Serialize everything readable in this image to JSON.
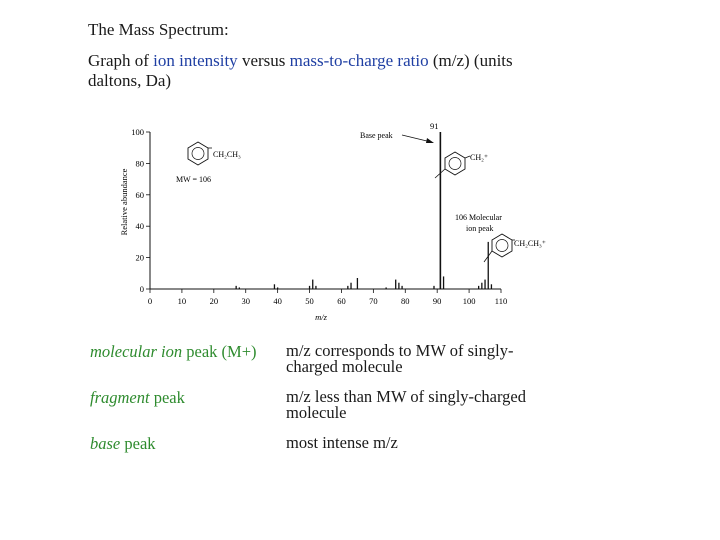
{
  "slide": {
    "title": "The Mass Spectrum:",
    "subtitle": {
      "p1": "Graph of ",
      "k1": "ion intensity",
      "p2": " versus ",
      "k2": "mass-to-charge ratio",
      "p3": " (m/z) (units daltons, Da)"
    }
  },
  "chart_data": {
    "type": "bar",
    "xlabel": "m/z",
    "ylabel": "Relative abundance",
    "xlim": [
      0,
      110
    ],
    "ylim": [
      0,
      100
    ],
    "xticks": [
      0,
      10,
      20,
      30,
      40,
      50,
      60,
      70,
      80,
      90,
      100,
      110
    ],
    "yticks": [
      0,
      20,
      40,
      60,
      80,
      100
    ],
    "peaks": [
      {
        "x": 27,
        "y": 2
      },
      {
        "x": 28,
        "y": 1
      },
      {
        "x": 39,
        "y": 3
      },
      {
        "x": 40,
        "y": 1
      },
      {
        "x": 50,
        "y": 2
      },
      {
        "x": 51,
        "y": 6
      },
      {
        "x": 52,
        "y": 2
      },
      {
        "x": 62,
        "y": 2
      },
      {
        "x": 63,
        "y": 4
      },
      {
        "x": 65,
        "y": 7
      },
      {
        "x": 74,
        "y": 1
      },
      {
        "x": 77,
        "y": 6
      },
      {
        "x": 78,
        "y": 4
      },
      {
        "x": 79,
        "y": 2
      },
      {
        "x": 89,
        "y": 2
      },
      {
        "x": 91,
        "y": 100
      },
      {
        "x": 92,
        "y": 8
      },
      {
        "x": 103,
        "y": 2
      },
      {
        "x": 104,
        "y": 4
      },
      {
        "x": 105,
        "y": 6
      },
      {
        "x": 106,
        "y": 30
      },
      {
        "x": 107,
        "y": 3
      }
    ],
    "annotations": {
      "base_peak_label": "Base peak",
      "base_peak_value": "91",
      "ch2_plus": "CH₂⁺",
      "molecular_1": "106 Molecular",
      "molecular_2": "ion peak",
      "ch2ch3_plus": "CH₂CH₃⁺",
      "compound_sub": "CH₂CH₃",
      "mw": "MW = 106"
    }
  },
  "terms": [
    {
      "italic": "molecular ion",
      "rest": " peak (M+)",
      "desc1": "m/z corresponds to MW of singly-",
      "desc2": "charged molecule"
    },
    {
      "italic": "fragment",
      "rest": " peak",
      "desc1": "m/z less than MW of singly-charged",
      "desc2": "molecule"
    },
    {
      "italic": "base",
      "rest": " peak",
      "desc1": "most intense m/z",
      "desc2": ""
    }
  ],
  "colors": {
    "highlight": "#1f3fa3",
    "term": "#2e8b2e"
  }
}
